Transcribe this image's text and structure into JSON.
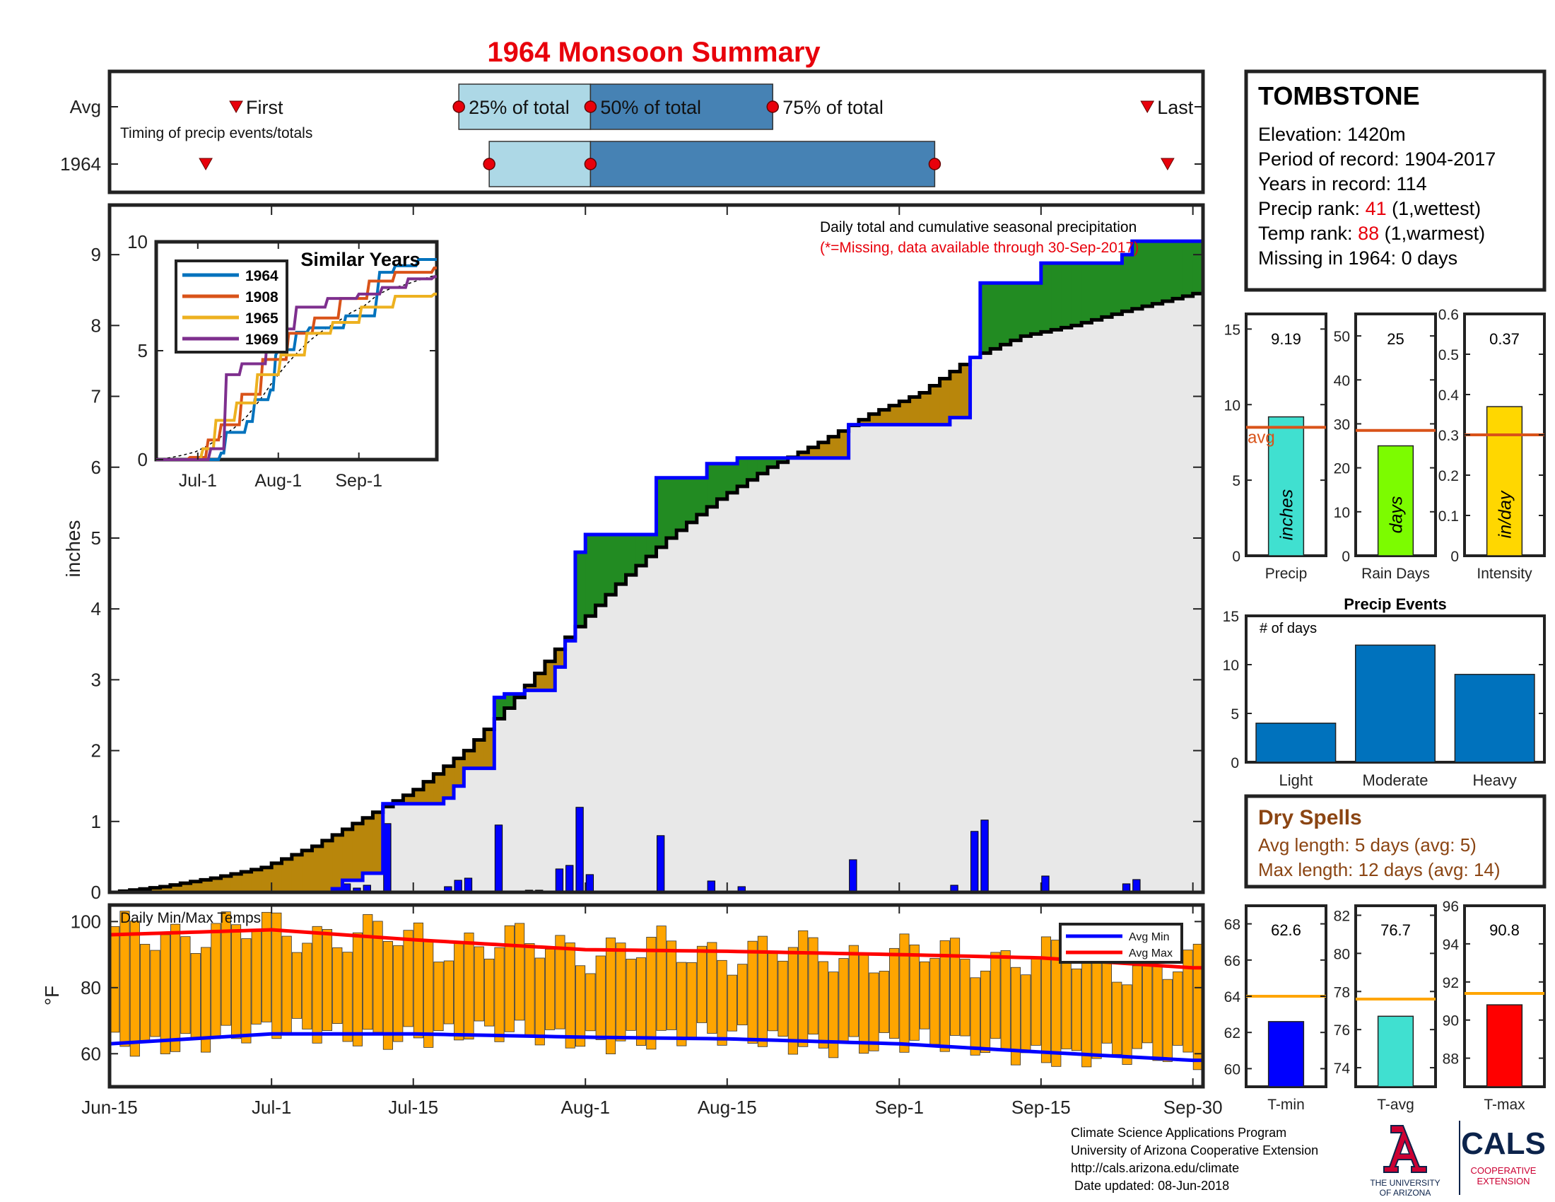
{
  "page": {
    "title": "1964 Monsoon Summary",
    "footer": [
      "Climate Science Applications Program",
      "University of Arizona Cooperative Extension",
      "http://cals.arizona.edu/climate",
      " Date updated: 08-Jun-2018"
    ],
    "logos": {
      "ua_line1": "THE UNIVERSITY",
      "ua_line2": "OF ARIZONA",
      "cals": "CALS",
      "cals_line1": "COOPERATIVE",
      "cals_line2": "EXTENSION",
      "ua_color": "#cc0033",
      "ua_navy": "#0c234b"
    }
  },
  "info": {
    "station": "TOMBSTONE",
    "elevation": "Elevation: 1420m",
    "period": "Period of record: 1904-2017",
    "years": "Years in record: 114",
    "precip_rank_label": "Precip rank: ",
    "precip_rank_value": "41",
    "precip_rank_note": " (1,wettest)",
    "temp_rank_label": "Temp rank: ",
    "temp_rank_value": "88",
    "temp_rank_note": " (1,warmest)",
    "missing": "Missing in 1964: 0 days"
  },
  "dry_spells": {
    "title": "Dry Spells",
    "avg": "Avg length: 5 days (avg: 5)",
    "max": "Max length: 12 days (avg: 14)",
    "color": "#8b4513"
  },
  "colors": {
    "title_red": "#e8000b",
    "above": "#228b22",
    "below": "#b8860b",
    "obs": "#0000ff",
    "climo": "#000000",
    "bg_area": "#e8e8e8",
    "timing_light": "#add8e6",
    "timing_dark": "#4682b4",
    "temp_bar": "#ffa500",
    "avg_line": "#d95319",
    "temp_avg_line": "#ffa500"
  },
  "chart_data": [
    {
      "id": "timing",
      "type": "bar",
      "title": "Timing of precip events/totals",
      "rows": [
        "Avg",
        "1964"
      ],
      "labels": {
        "first": "First",
        "p25": "25% of total",
        "p50": "50% of total",
        "p75": "75% of total",
        "last": "Last"
      },
      "avg": {
        "first": "Jun-27",
        "p25": "Jul-19",
        "p50": "Aug-1",
        "p75": "Aug-19",
        "last": "Sep-25"
      },
      "y1964": {
        "first": "Jun-24",
        "p25": "Jul-22",
        "p50": "Aug-1",
        "p75": "Sep-4",
        "last": "Sep-27"
      }
    },
    {
      "id": "main",
      "type": "area",
      "title": "Daily total and cumulative seasonal precipitation",
      "subtitle": "(*=Missing, data available through 30-Sep-2017)",
      "ylabel": "inches",
      "ylim": [
        0,
        9.7
      ],
      "yticks": [
        0,
        1,
        2,
        3,
        4,
        5,
        6,
        7,
        8,
        9
      ],
      "xticks": [
        "Jun-15",
        "Jul-1",
        "Jul-15",
        "Aug-1",
        "Aug-15",
        "Sep-1",
        "Sep-15",
        "Sep-30"
      ],
      "daily_1964": [
        [
          "Jul-7",
          0.05
        ],
        [
          "Jul-8",
          0.12
        ],
        [
          "Jul-9",
          0.06
        ],
        [
          "Jul-10",
          0.1
        ],
        [
          "Jul-12",
          0.97
        ],
        [
          "Jul-18",
          0.08
        ],
        [
          "Jul-19",
          0.17
        ],
        [
          "Jul-20",
          0.2
        ],
        [
          "Jul-23",
          0.95
        ],
        [
          "Jul-26",
          0.03
        ],
        [
          "Jul-27",
          0.03
        ],
        [
          "Jul-29",
          0.33
        ],
        [
          "Jul-30",
          0.38
        ],
        [
          "Jul-31",
          1.2
        ],
        [
          "Aug-1",
          0.25
        ],
        [
          "Aug-8",
          0.8
        ],
        [
          "Aug-13",
          0.16
        ],
        [
          "Aug-16",
          0.08
        ],
        [
          "Aug-27",
          0.46
        ],
        [
          "Sep-6",
          0.1
        ],
        [
          "Sep-8",
          0.86
        ],
        [
          "Sep-9",
          1.02
        ],
        [
          "Sep-15",
          0.23
        ],
        [
          "Sep-23",
          0.12
        ],
        [
          "Sep-24",
          0.18
        ]
      ],
      "cumulative_1964": [
        [
          "Jun-15",
          0
        ],
        [
          "Jul-7",
          0.05
        ],
        [
          "Jul-8",
          0.17
        ],
        [
          "Jul-9",
          0.17
        ],
        [
          "Jul-10",
          0.27
        ],
        [
          "Jul-12",
          1.25
        ],
        [
          "Jul-18",
          1.33
        ],
        [
          "Jul-19",
          1.5
        ],
        [
          "Jul-20",
          1.75
        ],
        [
          "Jul-23",
          2.75
        ],
        [
          "Jul-24",
          2.8
        ],
        [
          "Jul-26",
          2.85
        ],
        [
          "Jul-28",
          2.85
        ],
        [
          "Jul-29",
          3.18
        ],
        [
          "Jul-30",
          3.55
        ],
        [
          "Jul-31",
          4.8
        ],
        [
          "Aug-1",
          5.05
        ],
        [
          "Aug-8",
          5.85
        ],
        [
          "Aug-13",
          6.05
        ],
        [
          "Aug-16",
          6.13
        ],
        [
          "Aug-27",
          6.6
        ],
        [
          "Sep-6",
          6.7
        ],
        [
          "Sep-8",
          7.55
        ],
        [
          "Sep-9",
          8.6
        ],
        [
          "Sep-15",
          8.88
        ],
        [
          "Sep-23",
          9.0
        ],
        [
          "Sep-24",
          9.19
        ],
        [
          "Sep-30",
          9.19
        ]
      ],
      "climatology_cumulative": [
        [
          "Jun-15",
          0
        ],
        [
          "Jun-20",
          0.08
        ],
        [
          "Jun-25",
          0.2
        ],
        [
          "Jun-30",
          0.35
        ],
        [
          "Jul-5",
          0.65
        ],
        [
          "Jul-10",
          1.05
        ],
        [
          "Jul-15",
          1.45
        ],
        [
          "Jul-20",
          2.0
        ],
        [
          "Jul-25",
          2.75
        ],
        [
          "Jul-30",
          3.6
        ],
        [
          "Aug-4",
          4.35
        ],
        [
          "Aug-9",
          5.0
        ],
        [
          "Aug-14",
          5.55
        ],
        [
          "Aug-19",
          6.0
        ],
        [
          "Aug-24",
          6.35
        ],
        [
          "Aug-29",
          6.75
        ],
        [
          "Sep-3",
          7.05
        ],
        [
          "Sep-8",
          7.55
        ],
        [
          "Sep-13",
          7.85
        ],
        [
          "Sep-18",
          8.0
        ],
        [
          "Sep-23",
          8.2
        ],
        [
          "Sep-30",
          8.45
        ]
      ]
    },
    {
      "id": "similar",
      "type": "line",
      "title": "Similar Years",
      "ylim": [
        0,
        10
      ],
      "yticks": [
        0,
        5,
        10
      ],
      "xticks": [
        "Jul-1",
        "Aug-1",
        "Sep-1"
      ],
      "series": [
        {
          "name": "1964",
          "color": "#0072bd",
          "points": [
            [
              "Jun-15",
              0
            ],
            [
              "Jul-10",
              0.3
            ],
            [
              "Jul-12",
              1.25
            ],
            [
              "Jul-20",
              1.75
            ],
            [
              "Jul-23",
              2.75
            ],
            [
              "Jul-29",
              3.2
            ],
            [
              "Jul-31",
              4.8
            ],
            [
              "Aug-1",
              5.05
            ],
            [
              "Aug-8",
              5.85
            ],
            [
              "Aug-13",
              6.05
            ],
            [
              "Aug-27",
              6.6
            ],
            [
              "Sep-8",
              7.55
            ],
            [
              "Sep-9",
              8.6
            ],
            [
              "Sep-15",
              8.9
            ],
            [
              "Sep-24",
              9.19
            ],
            [
              "Sep-30",
              9.19
            ]
          ]
        },
        {
          "name": "1908",
          "color": "#d95319",
          "points": [
            [
              "Jun-15",
              0
            ],
            [
              "Jun-28",
              0.1
            ],
            [
              "Jul-5",
              0.9
            ],
            [
              "Jul-10",
              1.6
            ],
            [
              "Jul-18",
              3.0
            ],
            [
              "Jul-26",
              4.6
            ],
            [
              "Aug-5",
              5.8
            ],
            [
              "Aug-15",
              6.5
            ],
            [
              "Aug-25",
              7.4
            ],
            [
              "Sep-5",
              8.2
            ],
            [
              "Sep-15",
              8.6
            ],
            [
              "Sep-30",
              8.8
            ]
          ]
        },
        {
          "name": "1965",
          "color": "#edb120",
          "points": [
            [
              "Jun-15",
              0
            ],
            [
              "Jul-3",
              0.5
            ],
            [
              "Jul-8",
              1.8
            ],
            [
              "Jul-16",
              2.6
            ],
            [
              "Jul-24",
              3.9
            ],
            [
              "Aug-2",
              4.8
            ],
            [
              "Aug-12",
              5.8
            ],
            [
              "Aug-22",
              6.3
            ],
            [
              "Sep-2",
              7.0
            ],
            [
              "Sep-15",
              7.5
            ],
            [
              "Sep-30",
              7.6
            ]
          ]
        },
        {
          "name": "1969",
          "color": "#7e2f8e",
          "points": [
            [
              "Jun-15",
              0
            ],
            [
              "Jul-6",
              0.5
            ],
            [
              "Jul-12",
              3.9
            ],
            [
              "Jul-18",
              4.4
            ],
            [
              "Jul-28",
              6.0
            ],
            [
              "Aug-8",
              7.0
            ],
            [
              "Aug-20",
              7.4
            ],
            [
              "Sep-1",
              7.6
            ],
            [
              "Sep-10",
              7.9
            ],
            [
              "Sep-20",
              8.3
            ],
            [
              "Sep-30",
              8.4
            ]
          ]
        }
      ]
    },
    {
      "id": "temps",
      "type": "bar",
      "title": "Daily Min/Max Temps",
      "ylabel": "°F",
      "ylim": [
        50,
        105
      ],
      "yticks": [
        60,
        80,
        100
      ],
      "legend": [
        "Avg Min",
        "Avg Max"
      ],
      "avg_min": [
        [
          "Jun-15",
          63
        ],
        [
          "Jul-1",
          66
        ],
        [
          "Jul-15",
          66
        ],
        [
          "Aug-1",
          65
        ],
        [
          "Aug-15",
          64.5
        ],
        [
          "Sep-1",
          63
        ],
        [
          "Sep-15",
          60.5
        ],
        [
          "Sep-30",
          58
        ]
      ],
      "avg_max": [
        [
          "Jun-15",
          96
        ],
        [
          "Jul-1",
          97.5
        ],
        [
          "Jul-15",
          94.5
        ],
        [
          "Aug-1",
          91.5
        ],
        [
          "Aug-15",
          91
        ],
        [
          "Sep-1",
          90
        ],
        [
          "Sep-15",
          89
        ],
        [
          "Sep-30",
          86
        ]
      ]
    },
    {
      "id": "season_precip",
      "type": "bar",
      "ylim": [
        0,
        16
      ],
      "yticks": [
        0,
        5,
        10,
        15
      ],
      "value": 9.19,
      "value_label": "9.19",
      "avg": 8.5,
      "avg_label": "avg",
      "unit": "inches",
      "xlabel": "Precip",
      "color": "#40e0d0"
    },
    {
      "id": "rain_days",
      "type": "bar",
      "ylim": [
        0,
        55
      ],
      "yticks": [
        0,
        10,
        20,
        30,
        40,
        50
      ],
      "value": 25,
      "value_label": "25",
      "avg": 28.5,
      "unit": "days",
      "xlabel": "Rain Days",
      "color": "#7cfc00"
    },
    {
      "id": "intensity",
      "type": "bar",
      "ylim": [
        0,
        0.6
      ],
      "yticks": [
        0,
        0.1,
        0.2,
        0.3,
        0.4,
        0.5,
        0.6
      ],
      "value": 0.37,
      "value_label": "0.37",
      "avg": 0.3,
      "unit": "in/day",
      "xlabel": "Intensity",
      "color": "#ffd700"
    },
    {
      "id": "events",
      "type": "bar",
      "title": "Precip Events",
      "ylabel": "# of days",
      "ylim": [
        0,
        15
      ],
      "yticks": [
        0,
        5,
        10,
        15
      ],
      "categories": [
        "Light",
        "Moderate",
        "Heavy"
      ],
      "values": [
        4,
        12,
        9
      ],
      "color": "#0072bd"
    },
    {
      "id": "tmin",
      "type": "bar",
      "ylim": [
        59,
        69
      ],
      "yticks": [
        60,
        62,
        64,
        66,
        68
      ],
      "value": 62.6,
      "value_label": "62.6",
      "avg": 64,
      "xlabel": "T-min",
      "color": "#0000ff"
    },
    {
      "id": "tavg",
      "type": "bar",
      "ylim": [
        73,
        82.5
      ],
      "yticks": [
        74,
        76,
        78,
        80,
        82
      ],
      "value": 76.7,
      "value_label": "76.7",
      "avg": 77.6,
      "xlabel": "T-avg",
      "color": "#40e0d0"
    },
    {
      "id": "tmax",
      "type": "bar",
      "ylim": [
        86.5,
        96
      ],
      "yticks": [
        88,
        90,
        92,
        94,
        96
      ],
      "value": 90.8,
      "value_label": "90.8",
      "avg": 91.4,
      "xlabel": "T-max",
      "color": "#ff0000"
    }
  ]
}
